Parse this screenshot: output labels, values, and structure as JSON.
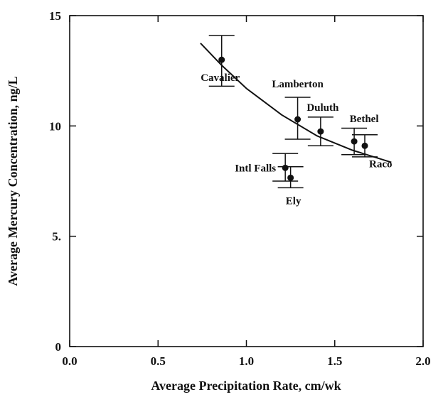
{
  "chart_data": {
    "type": "scatter",
    "title": "",
    "xlabel": "Average Precipitation Rate, cm/wk",
    "ylabel": "Average Mercury Concentration, ng/L",
    "xlim": [
      0,
      2.0
    ],
    "ylim": [
      0,
      15
    ],
    "xticks": [
      0,
      0.5,
      1.0,
      1.5,
      2.0
    ],
    "xtick_labels": [
      "0.0",
      "0.5",
      "1.0",
      "1.5",
      "2.0"
    ],
    "yticks": [
      0,
      5,
      10,
      15
    ],
    "ytick_labels": [
      "0",
      "5.",
      "10",
      "15"
    ],
    "grid": false,
    "legend": "none",
    "series": [
      {
        "points": [
          {
            "label": "Cavalier",
            "x": 0.86,
            "y": 13.0,
            "err_low": 11.8,
            "err_high": 14.1
          },
          {
            "label": "Lamberton",
            "x": 1.29,
            "y": 10.3,
            "err_low": 9.4,
            "err_high": 11.3
          },
          {
            "label": "Duluth",
            "x": 1.42,
            "y": 9.75,
            "err_low": 9.1,
            "err_high": 10.4
          },
          {
            "label": "Bethel",
            "x": 1.61,
            "y": 9.3,
            "err_low": 8.7,
            "err_high": 9.9
          },
          {
            "label": "Raco",
            "x": 1.67,
            "y": 9.1,
            "err_low": 8.6,
            "err_high": 9.6
          },
          {
            "label": "Intl Falls",
            "x": 1.22,
            "y": 8.1,
            "err_low": 7.5,
            "err_high": 8.75
          },
          {
            "label": "Ely",
            "x": 1.25,
            "y": 7.65,
            "err_low": 7.2,
            "err_high": 8.15
          }
        ]
      }
    ],
    "fit_curve": {
      "x": [
        0.74,
        0.86,
        1.0,
        1.2,
        1.4,
        1.6,
        1.82
      ],
      "y": [
        13.75,
        12.75,
        11.7,
        10.5,
        9.55,
        8.9,
        8.35
      ]
    }
  }
}
